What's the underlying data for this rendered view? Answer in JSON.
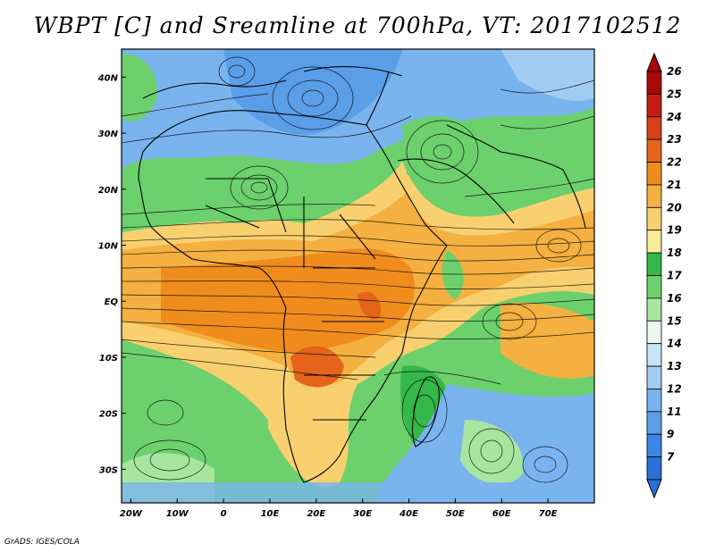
{
  "title": "WBPT [C] and Sreamline at 700hPa, VT: 2017102512",
  "credit": "GrADS: IGES/COLA",
  "map": {
    "lat_labels": [
      "40N",
      "30N",
      "20N",
      "10N",
      "EQ",
      "10S",
      "20S",
      "30S"
    ],
    "lat_values": [
      40,
      30,
      20,
      10,
      0,
      -10,
      -20,
      -30
    ],
    "lon_labels": [
      "20W",
      "10W",
      "0",
      "10E",
      "20E",
      "30E",
      "40E",
      "50E",
      "60E",
      "70E"
    ],
    "lon_values": [
      -20,
      -10,
      0,
      10,
      20,
      30,
      40,
      50,
      60,
      70
    ],
    "lon_range": [
      -22,
      80
    ],
    "lat_range": [
      -36,
      45
    ]
  },
  "colorbar": {
    "labels": [
      "7",
      "9",
      "11",
      "12",
      "13",
      "14",
      "15",
      "16",
      "17",
      "18",
      "19",
      "20",
      "21",
      "22",
      "23",
      "24",
      "25",
      "26"
    ],
    "colors": [
      "#2a6fd6",
      "#3a85e6",
      "#5a9ee8",
      "#7ab4ee",
      "#a3ccf2",
      "#c8e2f6",
      "#e8f8ee",
      "#a8e6a0",
      "#6cd06c",
      "#34b848",
      "#fcec98",
      "#f8d070",
      "#f4b040",
      "#f08c1c",
      "#e4641a",
      "#d84018",
      "#c41c10",
      "#a80808"
    ]
  }
}
